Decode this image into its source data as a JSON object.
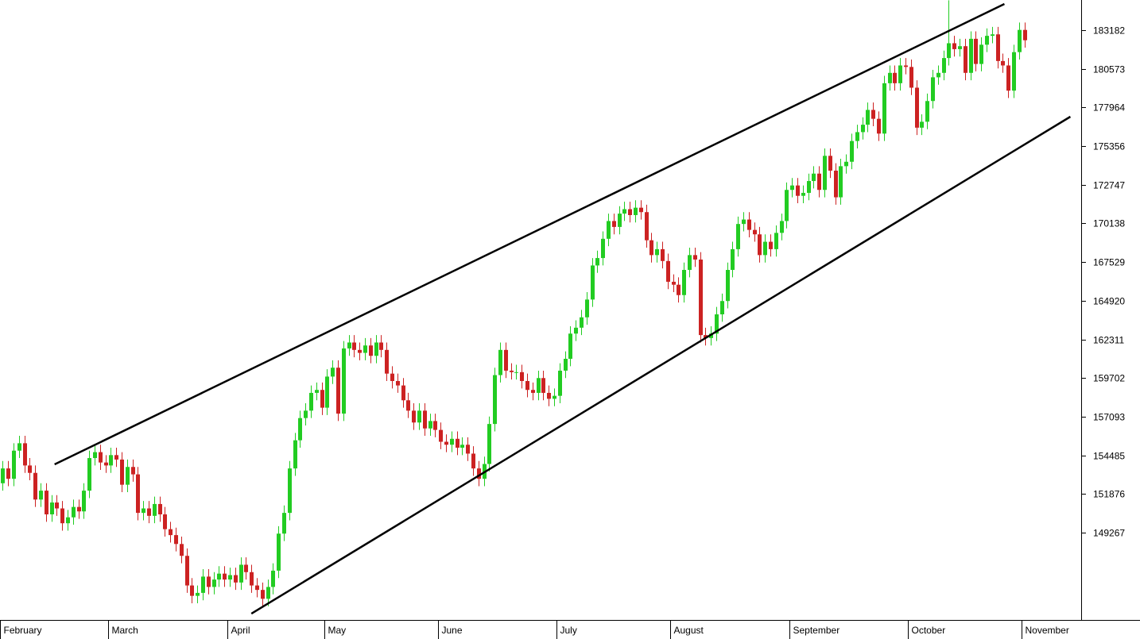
{
  "chart_data": {
    "type": "candlestick",
    "xlim": [
      -0.5,
      199.5
    ],
    "xticks": [
      {
        "value": 0,
        "label": "February"
      },
      {
        "value": 20,
        "label": "March"
      },
      {
        "value": 42,
        "label": "April"
      },
      {
        "value": 60,
        "label": "May"
      },
      {
        "value": 81,
        "label": "June"
      },
      {
        "value": 103,
        "label": "July"
      },
      {
        "value": 124,
        "label": "August"
      },
      {
        "value": 146,
        "label": "September"
      },
      {
        "value": 168,
        "label": "October"
      },
      {
        "value": 189,
        "label": "November"
      }
    ],
    "ylim": [
      143373,
      185218
    ],
    "yticks": [
      149267,
      151876,
      154485,
      157093,
      159702,
      162311,
      164920,
      167529,
      170138,
      172747,
      175356,
      177964,
      180573,
      183182
    ],
    "up_color": "#22cc22",
    "down_color": "#cc2222",
    "line_color": "#000000",
    "open": [
      152600,
      153600,
      152900,
      154800,
      155300,
      153800,
      153300,
      151500,
      152100,
      150500,
      151300,
      150900,
      149900,
      150300,
      151000,
      150700,
      152100,
      154300,
      154700,
      154000,
      153800,
      154500,
      154200,
      152500,
      153700,
      153200,
      150600,
      150900,
      150400,
      151200,
      150500,
      149500,
      149100,
      148500,
      147700,
      145700,
      145000,
      145200,
      146300,
      145600,
      146100,
      146500,
      146100,
      146400,
      145900,
      147100,
      146600,
      145700,
      145400,
      144800,
      145600,
      146700,
      149200,
      150600,
      153600,
      155500,
      157000,
      157500,
      158700,
      158900,
      157700,
      159800,
      160400,
      157300,
      161700,
      162100,
      161600,
      161400,
      161900,
      161200,
      162100,
      161600,
      160000,
      159500,
      159200,
      158200,
      157500,
      156700,
      157500,
      156300,
      156800,
      156200,
      155400,
      155200,
      155600,
      155000,
      155200,
      154600,
      153600,
      152900,
      153900,
      156600,
      159900,
      161600,
      160200,
      160100,
      160100,
      159500,
      158900,
      158700,
      159700,
      158700,
      158300,
      158500,
      160200,
      161000,
      162700,
      163100,
      163800,
      165000,
      167300,
      167800,
      169100,
      170300,
      169900,
      170800,
      171100,
      170700,
      171200,
      170900,
      169000,
      168000,
      168400,
      167600,
      166200,
      166000,
      165300,
      167000,
      168000,
      167700,
      162600,
      162400,
      162700,
      164000,
      164900,
      167000,
      168400,
      170100,
      170400,
      169700,
      169400,
      168000,
      168900,
      168400,
      169500,
      170300,
      172400,
      172700,
      172000,
      172200,
      173000,
      173500,
      172400,
      174700,
      173700,
      171900,
      174000,
      174300,
      175700,
      176300,
      176800,
      177800,
      177200,
      176200,
      179600,
      180300,
      179600,
      180800,
      180700,
      179300,
      176600,
      177000,
      178400,
      180000,
      180300,
      181300,
      182300,
      181900,
      182100,
      180300,
      182600,
      180900,
      182200,
      182800,
      182900,
      181100,
      180800,
      179100,
      181700,
      183200
    ],
    "high": [
      154100,
      154100,
      155300,
      155800,
      155800,
      154300,
      153800,
      152600,
      152600,
      151800,
      151800,
      151400,
      150800,
      151500,
      151500,
      152600,
      154800,
      155200,
      155200,
      154500,
      155000,
      155000,
      154700,
      154200,
      154200,
      153700,
      151400,
      151400,
      151700,
      151700,
      151000,
      150000,
      149600,
      149000,
      148200,
      146200,
      145700,
      146800,
      146800,
      146600,
      147000,
      147000,
      146900,
      146900,
      147600,
      147600,
      147100,
      146200,
      145900,
      146100,
      147200,
      149700,
      151100,
      154100,
      156000,
      157500,
      158000,
      159200,
      159400,
      159400,
      160300,
      160900,
      160900,
      162200,
      162600,
      162600,
      162100,
      162400,
      162400,
      162600,
      162600,
      162100,
      160500,
      160000,
      159700,
      158700,
      158000,
      158000,
      158000,
      157300,
      157300,
      156700,
      155900,
      156100,
      156100,
      155700,
      155700,
      155100,
      154100,
      154400,
      157100,
      160400,
      162100,
      162100,
      160700,
      160600,
      160600,
      160000,
      159400,
      160200,
      160200,
      159200,
      159000,
      160700,
      161500,
      163200,
      163600,
      164300,
      165500,
      167800,
      168300,
      169600,
      170800,
      170800,
      171300,
      171600,
      171600,
      171700,
      171700,
      171400,
      169500,
      168900,
      168900,
      168100,
      166700,
      166500,
      167500,
      168500,
      168500,
      168200,
      163100,
      163200,
      164500,
      165400,
      167500,
      168900,
      170600,
      170900,
      170900,
      170200,
      169900,
      169400,
      169400,
      170000,
      170800,
      172900,
      173200,
      173200,
      172700,
      173500,
      174000,
      174000,
      175200,
      175200,
      174200,
      174500,
      174800,
      176200,
      176800,
      177300,
      178300,
      178300,
      177700,
      180100,
      180800,
      180800,
      181300,
      181300,
      181200,
      179800,
      177500,
      178900,
      180500,
      180800,
      181800,
      185200,
      182800,
      182600,
      182600,
      183100,
      183100,
      182700,
      183300,
      183400,
      183400,
      181600,
      181300,
      182200,
      183700,
      183700
    ],
    "low": [
      152100,
      152400,
      152400,
      154300,
      153300,
      152800,
      151000,
      151000,
      150000,
      150000,
      150400,
      149400,
      149400,
      149800,
      150200,
      150200,
      151600,
      153800,
      153500,
      153300,
      153300,
      153700,
      152000,
      152000,
      152700,
      150100,
      150100,
      149900,
      149900,
      150000,
      149000,
      148600,
      148000,
      147200,
      145200,
      144500,
      144500,
      144700,
      145100,
      145100,
      145600,
      145600,
      145600,
      145400,
      145400,
      146100,
      145200,
      144900,
      144300,
      144300,
      145100,
      146200,
      148700,
      150100,
      153100,
      155000,
      156500,
      157000,
      158200,
      157200,
      157200,
      159300,
      156800,
      156800,
      161200,
      161100,
      160900,
      160900,
      160700,
      160700,
      161100,
      159500,
      159000,
      158700,
      157700,
      157000,
      156200,
      156200,
      155800,
      155800,
      155700,
      154900,
      154700,
      154700,
      154500,
      154500,
      154100,
      153100,
      152400,
      152400,
      153400,
      156100,
      159400,
      159700,
      159600,
      159600,
      159000,
      158400,
      158200,
      158200,
      158200,
      157800,
      157800,
      158000,
      159700,
      160500,
      162200,
      162600,
      163300,
      164500,
      166800,
      167300,
      168600,
      169400,
      169400,
      170300,
      170200,
      170200,
      170400,
      168500,
      167500,
      167500,
      167100,
      165700,
      165500,
      164800,
      164800,
      166500,
      167200,
      162100,
      161900,
      161900,
      162200,
      163500,
      164400,
      166500,
      167900,
      169600,
      169200,
      168900,
      167500,
      167500,
      167900,
      167900,
      169000,
      169800,
      171900,
      171500,
      171500,
      171700,
      172500,
      171900,
      171900,
      173200,
      171400,
      171400,
      173500,
      173800,
      175200,
      175800,
      176300,
      176700,
      175700,
      175700,
      179100,
      179100,
      179100,
      180200,
      178800,
      176100,
      176100,
      176500,
      177900,
      179500,
      179800,
      180800,
      181400,
      181400,
      179800,
      179800,
      180400,
      180400,
      181700,
      182300,
      180600,
      180300,
      178600,
      178600,
      181200,
      182000
    ],
    "close": [
      153600,
      152900,
      154800,
      155300,
      153800,
      153300,
      151500,
      152100,
      150500,
      151300,
      150900,
      149900,
      150300,
      151000,
      150700,
      152100,
      154300,
      154700,
      154000,
      153800,
      154500,
      154200,
      152500,
      153700,
      153200,
      150600,
      150900,
      150400,
      151200,
      150500,
      149500,
      149100,
      148500,
      147700,
      145700,
      145000,
      145200,
      146300,
      145600,
      146100,
      146500,
      146100,
      146400,
      145900,
      147100,
      146600,
      145700,
      145400,
      144800,
      145600,
      146700,
      149200,
      150600,
      153600,
      155500,
      157000,
      157500,
      158700,
      158900,
      157700,
      159800,
      160400,
      157300,
      161700,
      162100,
      161600,
      161400,
      161900,
      161200,
      162100,
      161600,
      160000,
      159500,
      159200,
      158200,
      157500,
      156700,
      157500,
      156300,
      156800,
      156200,
      155400,
      155200,
      155600,
      155000,
      155200,
      154600,
      153600,
      152900,
      153900,
      156600,
      159900,
      161600,
      160200,
      160100,
      160100,
      159500,
      158900,
      158700,
      159700,
      158700,
      158300,
      158500,
      160200,
      161000,
      162700,
      163100,
      163800,
      165000,
      167300,
      167800,
      169100,
      170300,
      169900,
      170800,
      171100,
      170700,
      171200,
      170900,
      169000,
      168000,
      168400,
      167600,
      166200,
      166000,
      165300,
      167000,
      168000,
      167700,
      162600,
      162400,
      162700,
      164000,
      164900,
      167000,
      168400,
      170100,
      170400,
      169700,
      169400,
      168000,
      168900,
      168400,
      169500,
      170300,
      172400,
      172700,
      172000,
      172200,
      173000,
      173500,
      172400,
      174700,
      173700,
      171900,
      174000,
      174300,
      175700,
      176300,
      176800,
      177800,
      177200,
      176200,
      179600,
      180300,
      179600,
      180800,
      180700,
      179300,
      176600,
      177000,
      178400,
      180000,
      180300,
      181300,
      182300,
      181900,
      182100,
      180300,
      182600,
      180900,
      182200,
      182800,
      182900,
      181100,
      180800,
      179100,
      181700,
      183200,
      182500
    ],
    "trendlines": [
      {
        "x": [
          9.6,
          185.3
        ],
        "y": [
          153874,
          184950
        ]
      },
      {
        "x": [
          46,
          197.5
        ],
        "y": [
          143801,
          177342
        ]
      }
    ]
  }
}
